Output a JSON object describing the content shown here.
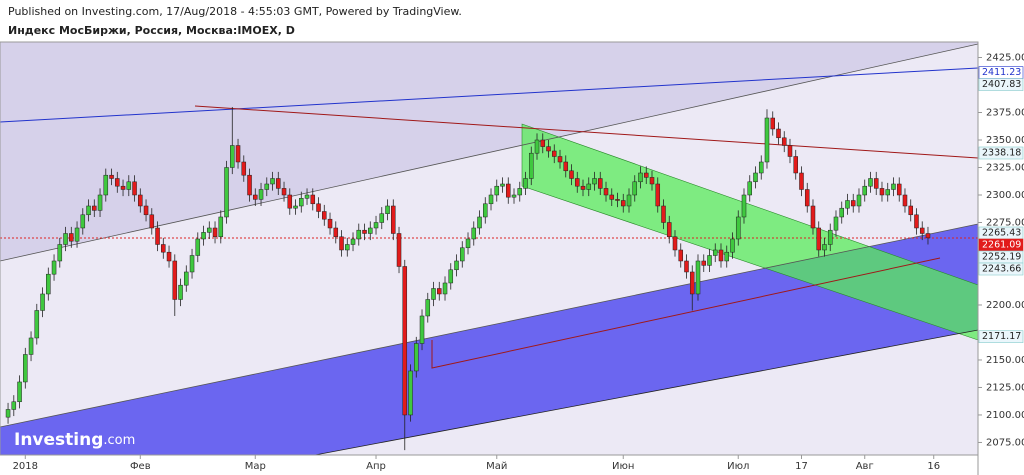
{
  "header": {
    "published": "Published on Investing.com, 17/Aug/2018 - 4:55:03 GMT, Powered by TradingView.",
    "symbol": "Индекс МосБиржи, Россия, Москва:IMOEX, D"
  },
  "watermark": {
    "brand": "Investing",
    "suffix": ".com"
  },
  "chart_data": {
    "type": "candlestick",
    "up_color": "#3fc83f",
    "down_color": "#e21b1b",
    "xlim": [
      -1.4,
      168.7
    ],
    "ylim": [
      2063.6,
      2439.1
    ],
    "xticks": [
      {
        "value": 3,
        "label": "2018"
      },
      {
        "value": 23,
        "label": "Фев"
      },
      {
        "value": 43,
        "label": "Мар"
      },
      {
        "value": 64,
        "label": "Апр"
      },
      {
        "value": 85,
        "label": "Май"
      },
      {
        "value": 107,
        "label": "Июн"
      },
      {
        "value": 127,
        "label": "Июл"
      },
      {
        "value": 138,
        "label": "17"
      },
      {
        "value": 149,
        "label": "Авг"
      },
      {
        "value": 161,
        "label": "16"
      }
    ],
    "yticks": [
      {
        "value": 2425,
        "label": "2425.00"
      },
      {
        "value": 2375,
        "label": "2375.00"
      },
      {
        "value": 2350,
        "label": "2350.00"
      },
      {
        "value": 2325,
        "label": "2325.00"
      },
      {
        "value": 2300,
        "label": "2300.00"
      },
      {
        "value": 2275,
        "label": "2275.00"
      },
      {
        "value": 2200,
        "label": "2200.00"
      },
      {
        "value": 2150,
        "label": "2150.00"
      },
      {
        "value": 2125,
        "label": "2125.00"
      },
      {
        "value": 2100,
        "label": "2100.00"
      },
      {
        "value": 2075,
        "label": "2075.00"
      }
    ],
    "price_tags": [
      2411.23,
      2407.83,
      2338.18,
      2265.43,
      2261.09,
      2252.19,
      2243.66,
      2171.17
    ],
    "ohlc": [
      [
        2098,
        2111,
        2092,
        2105
      ],
      [
        2105,
        2118,
        2099,
        2112
      ],
      [
        2112,
        2136,
        2106,
        2130
      ],
      [
        2130,
        2161,
        2124,
        2155
      ],
      [
        2155,
        2176,
        2149,
        2170
      ],
      [
        2170,
        2201,
        2164,
        2195
      ],
      [
        2195,
        2216,
        2189,
        2210
      ],
      [
        2210,
        2234,
        2204,
        2228
      ],
      [
        2228,
        2246,
        2222,
        2240
      ],
      [
        2240,
        2261,
        2234,
        2255
      ],
      [
        2255,
        2271,
        2249,
        2265
      ],
      [
        2265,
        2271,
        2252,
        2258
      ],
      [
        2258,
        2276,
        2252,
        2270
      ],
      [
        2270,
        2288,
        2264,
        2282
      ],
      [
        2282,
        2296,
        2276,
        2290
      ],
      [
        2290,
        2296,
        2280,
        2286
      ],
      [
        2286,
        2306,
        2280,
        2300
      ],
      [
        2300,
        2324,
        2294,
        2318
      ],
      [
        2318,
        2324,
        2309,
        2315
      ],
      [
        2315,
        2321,
        2302,
        2308
      ],
      [
        2308,
        2314,
        2299,
        2305
      ],
      [
        2305,
        2318,
        2299,
        2312
      ],
      [
        2312,
        2318,
        2294,
        2300
      ],
      [
        2300,
        2306,
        2284,
        2290
      ],
      [
        2290,
        2296,
        2276,
        2282
      ],
      [
        2282,
        2288,
        2264,
        2270
      ],
      [
        2270,
        2276,
        2249,
        2255
      ],
      [
        2255,
        2261,
        2242,
        2248
      ],
      [
        2248,
        2254,
        2234,
        2240
      ],
      [
        2240,
        2246,
        2190,
        2205
      ],
      [
        2205,
        2224,
        2199,
        2218
      ],
      [
        2218,
        2236,
        2212,
        2230
      ],
      [
        2230,
        2251,
        2224,
        2245
      ],
      [
        2245,
        2266,
        2239,
        2260
      ],
      [
        2260,
        2272,
        2254,
        2266
      ],
      [
        2266,
        2276,
        2260,
        2270
      ],
      [
        2270,
        2276,
        2256,
        2262
      ],
      [
        2262,
        2286,
        2256,
        2280
      ],
      [
        2280,
        2331,
        2274,
        2325
      ],
      [
        2325,
        2380,
        2319,
        2345
      ],
      [
        2345,
        2351,
        2324,
        2330
      ],
      [
        2330,
        2336,
        2312,
        2318
      ],
      [
        2318,
        2324,
        2294,
        2300
      ],
      [
        2300,
        2306,
        2290,
        2296
      ],
      [
        2296,
        2311,
        2290,
        2305
      ],
      [
        2305,
        2316,
        2299,
        2310
      ],
      [
        2310,
        2321,
        2304,
        2315
      ],
      [
        2315,
        2321,
        2300,
        2306
      ],
      [
        2306,
        2312,
        2294,
        2300
      ],
      [
        2300,
        2306,
        2282,
        2288
      ],
      [
        2288,
        2296,
        2282,
        2290
      ],
      [
        2290,
        2303,
        2284,
        2297
      ],
      [
        2297,
        2306,
        2291,
        2300
      ],
      [
        2300,
        2306,
        2286,
        2292
      ],
      [
        2292,
        2298,
        2279,
        2285
      ],
      [
        2285,
        2291,
        2272,
        2278
      ],
      [
        2278,
        2284,
        2264,
        2270
      ],
      [
        2270,
        2276,
        2256,
        2262
      ],
      [
        2262,
        2268,
        2244,
        2250
      ],
      [
        2250,
        2261,
        2244,
        2255
      ],
      [
        2255,
        2266,
        2249,
        2260
      ],
      [
        2260,
        2274,
        2254,
        2268
      ],
      [
        2268,
        2274,
        2259,
        2265
      ],
      [
        2265,
        2276,
        2259,
        2270
      ],
      [
        2270,
        2281,
        2264,
        2275
      ],
      [
        2275,
        2289,
        2269,
        2283
      ],
      [
        2283,
        2296,
        2277,
        2290
      ],
      [
        2290,
        2296,
        2259,
        2265
      ],
      [
        2265,
        2271,
        2229,
        2235
      ],
      [
        2235,
        2241,
        2068,
        2100
      ],
      [
        2100,
        2146,
        2094,
        2140
      ],
      [
        2140,
        2171,
        2134,
        2165
      ],
      [
        2165,
        2196,
        2159,
        2190
      ],
      [
        2190,
        2211,
        2184,
        2205
      ],
      [
        2205,
        2221,
        2199,
        2215
      ],
      [
        2215,
        2221,
        2204,
        2210
      ],
      [
        2210,
        2226,
        2204,
        2220
      ],
      [
        2220,
        2238,
        2214,
        2232
      ],
      [
        2232,
        2246,
        2226,
        2240
      ],
      [
        2240,
        2258,
        2234,
        2252
      ],
      [
        2252,
        2266,
        2246,
        2260
      ],
      [
        2260,
        2276,
        2254,
        2270
      ],
      [
        2270,
        2286,
        2264,
        2280
      ],
      [
        2280,
        2298,
        2274,
        2292
      ],
      [
        2292,
        2306,
        2286,
        2300
      ],
      [
        2300,
        2314,
        2294,
        2308
      ],
      [
        2308,
        2316,
        2302,
        2310
      ],
      [
        2310,
        2316,
        2292,
        2298
      ],
      [
        2298,
        2306,
        2292,
        2300
      ],
      [
        2300,
        2312,
        2294,
        2306
      ],
      [
        2306,
        2321,
        2300,
        2315
      ],
      [
        2315,
        2344,
        2309,
        2338
      ],
      [
        2338,
        2356,
        2332,
        2350
      ],
      [
        2350,
        2356,
        2338,
        2344
      ],
      [
        2344,
        2350,
        2334,
        2340
      ],
      [
        2340,
        2346,
        2329,
        2335
      ],
      [
        2335,
        2341,
        2324,
        2330
      ],
      [
        2330,
        2336,
        2316,
        2322
      ],
      [
        2322,
        2328,
        2309,
        2315
      ],
      [
        2315,
        2321,
        2302,
        2308
      ],
      [
        2308,
        2314,
        2299,
        2305
      ],
      [
        2305,
        2316,
        2299,
        2310
      ],
      [
        2310,
        2321,
        2304,
        2315
      ],
      [
        2315,
        2321,
        2300,
        2306
      ],
      [
        2306,
        2312,
        2294,
        2300
      ],
      [
        2300,
        2306,
        2290,
        2296
      ],
      [
        2296,
        2302,
        2289,
        2295
      ],
      [
        2295,
        2301,
        2284,
        2290
      ],
      [
        2290,
        2306,
        2284,
        2300
      ],
      [
        2300,
        2318,
        2294,
        2312
      ],
      [
        2312,
        2326,
        2306,
        2320
      ],
      [
        2320,
        2326,
        2310,
        2316
      ],
      [
        2316,
        2322,
        2304,
        2310
      ],
      [
        2310,
        2316,
        2284,
        2290
      ],
      [
        2290,
        2296,
        2269,
        2275
      ],
      [
        2275,
        2281,
        2256,
        2262
      ],
      [
        2262,
        2268,
        2244,
        2250
      ],
      [
        2250,
        2256,
        2234,
        2240
      ],
      [
        2240,
        2246,
        2224,
        2230
      ],
      [
        2230,
        2236,
        2195,
        2210
      ],
      [
        2210,
        2246,
        2204,
        2240
      ],
      [
        2240,
        2246,
        2230,
        2236
      ],
      [
        2236,
        2251,
        2230,
        2245
      ],
      [
        2245,
        2256,
        2239,
        2250
      ],
      [
        2250,
        2256,
        2234,
        2240
      ],
      [
        2240,
        2254,
        2234,
        2248
      ],
      [
        2248,
        2266,
        2242,
        2260
      ],
      [
        2260,
        2286,
        2254,
        2280
      ],
      [
        2280,
        2306,
        2274,
        2300
      ],
      [
        2300,
        2318,
        2294,
        2312
      ],
      [
        2312,
        2326,
        2306,
        2320
      ],
      [
        2320,
        2336,
        2314,
        2330
      ],
      [
        2330,
        2378,
        2324,
        2370
      ],
      [
        2370,
        2376,
        2354,
        2360
      ],
      [
        2360,
        2366,
        2346,
        2352
      ],
      [
        2352,
        2358,
        2339,
        2345
      ],
      [
        2345,
        2351,
        2329,
        2335
      ],
      [
        2335,
        2341,
        2314,
        2320
      ],
      [
        2320,
        2326,
        2299,
        2305
      ],
      [
        2305,
        2311,
        2284,
        2290
      ],
      [
        2290,
        2296,
        2264,
        2270
      ],
      [
        2270,
        2276,
        2244,
        2250
      ],
      [
        2250,
        2261,
        2244,
        2255
      ],
      [
        2255,
        2274,
        2249,
        2268
      ],
      [
        2268,
        2286,
        2262,
        2280
      ],
      [
        2280,
        2294,
        2274,
        2288
      ],
      [
        2288,
        2301,
        2282,
        2295
      ],
      [
        2295,
        2301,
        2284,
        2290
      ],
      [
        2290,
        2306,
        2284,
        2300
      ],
      [
        2300,
        2314,
        2294,
        2308
      ],
      [
        2308,
        2321,
        2302,
        2315
      ],
      [
        2315,
        2321,
        2300,
        2306
      ],
      [
        2306,
        2312,
        2294,
        2300
      ],
      [
        2300,
        2311,
        2294,
        2305
      ],
      [
        2305,
        2316,
        2299,
        2310
      ],
      [
        2310,
        2316,
        2294,
        2300
      ],
      [
        2300,
        2306,
        2284,
        2290
      ],
      [
        2290,
        2296,
        2276,
        2282
      ],
      [
        2282,
        2288,
        2264,
        2270
      ],
      [
        2270,
        2276,
        2259,
        2265
      ],
      [
        2265,
        2271,
        2255,
        2261
      ]
    ]
  }
}
